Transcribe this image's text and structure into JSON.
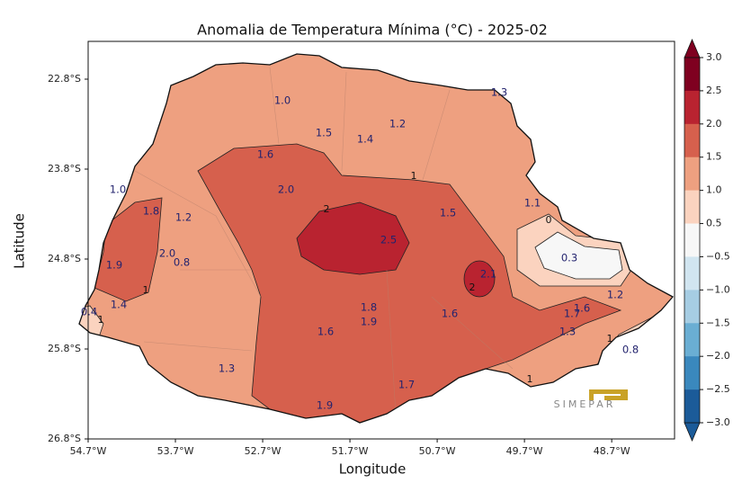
{
  "title": "Anomalia de Temperatura Mínima (°C) - 2025-02",
  "x_label": "Longitude",
  "y_label": "Latitude",
  "logo": "SIMEPAR",
  "xlim": [
    -54.7,
    -47.98
  ],
  "ylim": [
    -26.8,
    -22.38
  ],
  "xticks": [
    {
      "value": -54.7,
      "label": "54.7°W"
    },
    {
      "value": -53.7,
      "label": "53.7°W"
    },
    {
      "value": -52.7,
      "label": "52.7°W"
    },
    {
      "value": -51.7,
      "label": "51.7°W"
    },
    {
      "value": -50.7,
      "label": "50.7°W"
    },
    {
      "value": -49.7,
      "label": "49.7°W"
    },
    {
      "value": -48.7,
      "label": "48.7°W"
    }
  ],
  "yticks": [
    {
      "value": -22.8,
      "label": "22.8°S"
    },
    {
      "value": -23.8,
      "label": "23.8°S"
    },
    {
      "value": -24.8,
      "label": "24.8°S"
    },
    {
      "value": -25.8,
      "label": "25.8°S"
    },
    {
      "value": -26.8,
      "label": "26.8°S"
    }
  ],
  "colorbar": {
    "ticks": [
      {
        "value": 3,
        "label": "3.0"
      },
      {
        "value": 2.5,
        "label": "2.5"
      },
      {
        "value": 2,
        "label": "2.0"
      },
      {
        "value": 1.5,
        "label": "1.5"
      },
      {
        "value": 1,
        "label": "1.0"
      },
      {
        "value": 0.5,
        "label": "0.5"
      },
      {
        "value": -0.5,
        "label": "−0.5"
      },
      {
        "value": -1,
        "label": "−1.0"
      },
      {
        "value": -1.5,
        "label": "−1.5"
      },
      {
        "value": -2,
        "label": "−2.0"
      },
      {
        "value": -2.5,
        "label": "−2.5"
      },
      {
        "value": -3,
        "label": "−3.0"
      }
    ],
    "colors": [
      "#7f0020",
      "#b92330",
      "#d6604d",
      "#eea080",
      "#fbd3bf",
      "#f7f7f7",
      "#d1e5f0",
      "#a6cde3",
      "#6aaed3",
      "#3a88bd",
      "#1b5b99"
    ]
  },
  "labels": [
    "1.0",
    "1.3",
    "1.2",
    "1.5",
    "1.4",
    "1.6",
    "1",
    "2.0",
    "1.0",
    "1.1",
    "1.8",
    "1.2",
    "1.5",
    "2",
    "2.5",
    "0",
    "2.0",
    "0.8",
    "1.9",
    "0.3",
    "2.1",
    "1",
    "2",
    "1.2",
    "1.4",
    "1.8",
    "1.6",
    "1.7",
    "0.4",
    "1.6",
    "1.9",
    "1",
    "1.6",
    "1.3",
    "1",
    "0.8",
    "1.3",
    "1",
    "1.7",
    "1.9"
  ]
}
